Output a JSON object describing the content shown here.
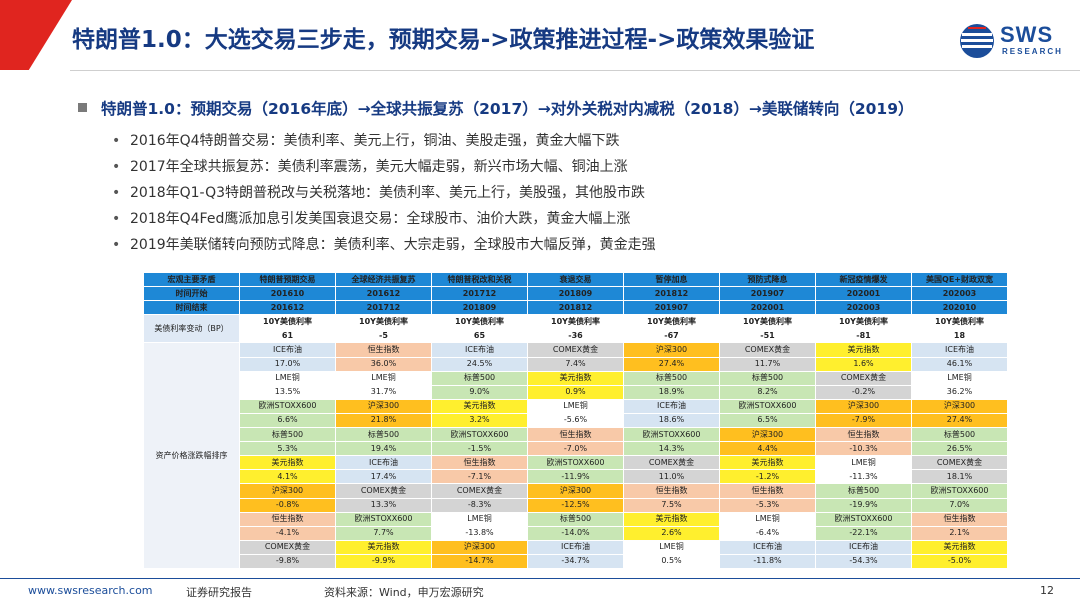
{
  "header": {
    "title": "特朗普1.0：大选交易三步走，预期交易->政策推进过程->政策效果验证",
    "logo_text": "SWS",
    "logo_sub": "RESEARCH"
  },
  "headline": "特朗普1.0：预期交易（2016年底）→全球共振复苏（2017）→对外关税对内减税（2018）→美联储转向（2019）",
  "bullets": [
    "2016年Q4特朗普交易：美债利率、美元上行，铜油、美股走强，黄金大幅下跌",
    "2017年全球共振复苏：美债利率震荡，美元大幅走弱，新兴市场大幅、铜油上涨",
    "2018年Q1-Q3特朗普税改与关税落地：美债利率、美元上行，美股强，其他股市跌",
    "2018年Q4Fed鹰派加息引发美国衰退交易：全球股市、油价大跌，黄金大幅上涨",
    "2019年美联储转向预防式降息：美债利率、大宗走弱，全球股市大幅反弹，黄金走强"
  ],
  "table": {
    "header_label": "宏观主要矛盾",
    "start_label": "时间开始",
    "end_label": "时间结束",
    "rate_label": "美债利率变动（BP）",
    "side_label": "资产价格涨跌幅排序",
    "columns": [
      {
        "name": "特朗普预期交易",
        "start": "201610",
        "end": "201612",
        "rate_name": "10Y美债利率",
        "rate_val": "61",
        "red": true
      },
      {
        "name": "全球经济共振复苏",
        "start": "201612",
        "end": "201712",
        "rate_name": "10Y美债利率",
        "rate_val": "-5",
        "red": false
      },
      {
        "name": "特朗普税改和关税",
        "start": "201712",
        "end": "201809",
        "rate_name": "10Y美债利率",
        "rate_val": "65",
        "red": true
      },
      {
        "name": "衰退交易",
        "start": "201809",
        "end": "201812",
        "rate_name": "10Y美债利率",
        "rate_val": "-36",
        "red": false
      },
      {
        "name": "暂停加息",
        "start": "201812",
        "end": "201907",
        "rate_name": "10Y美债利率",
        "rate_val": "-67",
        "red": false
      },
      {
        "name": "预防式降息",
        "start": "201907",
        "end": "202001",
        "rate_name": "10Y美债利率",
        "rate_val": "-51",
        "red": false
      },
      {
        "name": "新冠疫情爆发",
        "start": "202001",
        "end": "202003",
        "rate_name": "10Y美债利率",
        "rate_val": "-81",
        "red": false
      },
      {
        "name": "美国QE+财政双宽",
        "start": "202003",
        "end": "202010",
        "rate_name": "10Y美债利率",
        "rate_val": "18",
        "red": true
      }
    ],
    "colors": {
      "green": "#c8e6b4",
      "peach": "#f8c9a8",
      "grey": "#d4d4d4",
      "yellow": "#ffef2e",
      "orange": "#ffbf1f",
      "blue": "#d6e4f2",
      "white": "#ffffff"
    },
    "rows": [
      [
        [
          "ICE布油",
          "17.0%",
          "blue"
        ],
        [
          "恒生指数",
          "36.0%",
          "peach"
        ],
        [
          "ICE布油",
          "24.5%",
          "blue"
        ],
        [
          "COMEX黄金",
          "7.4%",
          "grey"
        ],
        [
          "沪深300",
          "27.4%",
          "orange"
        ],
        [
          "COMEX黄金",
          "11.7%",
          "grey"
        ],
        [
          "美元指数",
          "1.6%",
          "yellow"
        ],
        [
          "ICE布油",
          "46.1%",
          "blue"
        ]
      ],
      [
        [
          "LME铜",
          "13.5%",
          "white"
        ],
        [
          "LME铜",
          "31.7%",
          "white"
        ],
        [
          "标普500",
          "9.0%",
          "green"
        ],
        [
          "美元指数",
          "0.9%",
          "yellow"
        ],
        [
          "标普500",
          "18.9%",
          "green"
        ],
        [
          "标普500",
          "8.2%",
          "green"
        ],
        [
          "COMEX黄金",
          "-0.2%",
          "grey"
        ],
        [
          "LME铜",
          "36.2%",
          "white"
        ]
      ],
      [
        [
          "欧洲STOXX600",
          "6.6%",
          "green"
        ],
        [
          "沪深300",
          "21.8%",
          "orange"
        ],
        [
          "美元指数",
          "3.2%",
          "yellow"
        ],
        [
          "LME铜",
          "-5.6%",
          "white"
        ],
        [
          "ICE布油",
          "18.6%",
          "blue"
        ],
        [
          "欧洲STOXX600",
          "6.5%",
          "green"
        ],
        [
          "沪深300",
          "-7.9%",
          "orange"
        ],
        [
          "沪深300",
          "27.4%",
          "orange"
        ]
      ],
      [
        [
          "标普500",
          "5.3%",
          "green"
        ],
        [
          "标普500",
          "19.4%",
          "green"
        ],
        [
          "欧洲STOXX600",
          "-1.5%",
          "green"
        ],
        [
          "恒生指数",
          "-7.0%",
          "peach"
        ],
        [
          "欧洲STOXX600",
          "14.3%",
          "green"
        ],
        [
          "沪深300",
          "4.4%",
          "orange"
        ],
        [
          "恒生指数",
          "-10.3%",
          "peach"
        ],
        [
          "标普500",
          "26.5%",
          "green"
        ]
      ],
      [
        [
          "美元指数",
          "4.1%",
          "yellow"
        ],
        [
          "ICE布油",
          "17.4%",
          "blue"
        ],
        [
          "恒生指数",
          "-7.1%",
          "peach"
        ],
        [
          "欧洲STOXX600",
          "-11.9%",
          "green"
        ],
        [
          "COMEX黄金",
          "11.0%",
          "grey"
        ],
        [
          "美元指数",
          "-1.2%",
          "yellow"
        ],
        [
          "LME铜",
          "-11.3%",
          "white"
        ],
        [
          "COMEX黄金",
          "18.1%",
          "grey"
        ]
      ],
      [
        [
          "沪深300",
          "-0.8%",
          "orange"
        ],
        [
          "COMEX黄金",
          "13.3%",
          "grey"
        ],
        [
          "COMEX黄金",
          "-8.3%",
          "grey"
        ],
        [
          "沪深300",
          "-12.5%",
          "orange"
        ],
        [
          "恒生指数",
          "7.5%",
          "peach"
        ],
        [
          "恒生指数",
          "-5.3%",
          "peach"
        ],
        [
          "标普500",
          "-19.9%",
          "green"
        ],
        [
          "欧洲STOXX600",
          "7.0%",
          "green"
        ]
      ],
      [
        [
          "恒生指数",
          "-4.1%",
          "peach"
        ],
        [
          "欧洲STOXX600",
          "7.7%",
          "green"
        ],
        [
          "LME铜",
          "-13.8%",
          "white"
        ],
        [
          "标普500",
          "-14.0%",
          "green"
        ],
        [
          "美元指数",
          "2.6%",
          "yellow"
        ],
        [
          "LME铜",
          "-6.4%",
          "white"
        ],
        [
          "欧洲STOXX600",
          "-22.1%",
          "green"
        ],
        [
          "恒生指数",
          "2.1%",
          "peach"
        ]
      ],
      [
        [
          "COMEX黄金",
          "-9.8%",
          "grey"
        ],
        [
          "美元指数",
          "-9.9%",
          "yellow"
        ],
        [
          "沪深300",
          "-14.7%",
          "orange"
        ],
        [
          "ICE布油",
          "-34.7%",
          "blue"
        ],
        [
          "LME铜",
          "0.5%",
          "white"
        ],
        [
          "ICE布油",
          "-11.8%",
          "blue"
        ],
        [
          "ICE布油",
          "-54.3%",
          "blue"
        ],
        [
          "美元指数",
          "-5.0%",
          "yellow"
        ]
      ]
    ]
  },
  "footer": {
    "url": "www.swsresearch.com",
    "report": "证券研究报告",
    "source": "资料来源：Wind，申万宏源研究",
    "page": "12"
  }
}
